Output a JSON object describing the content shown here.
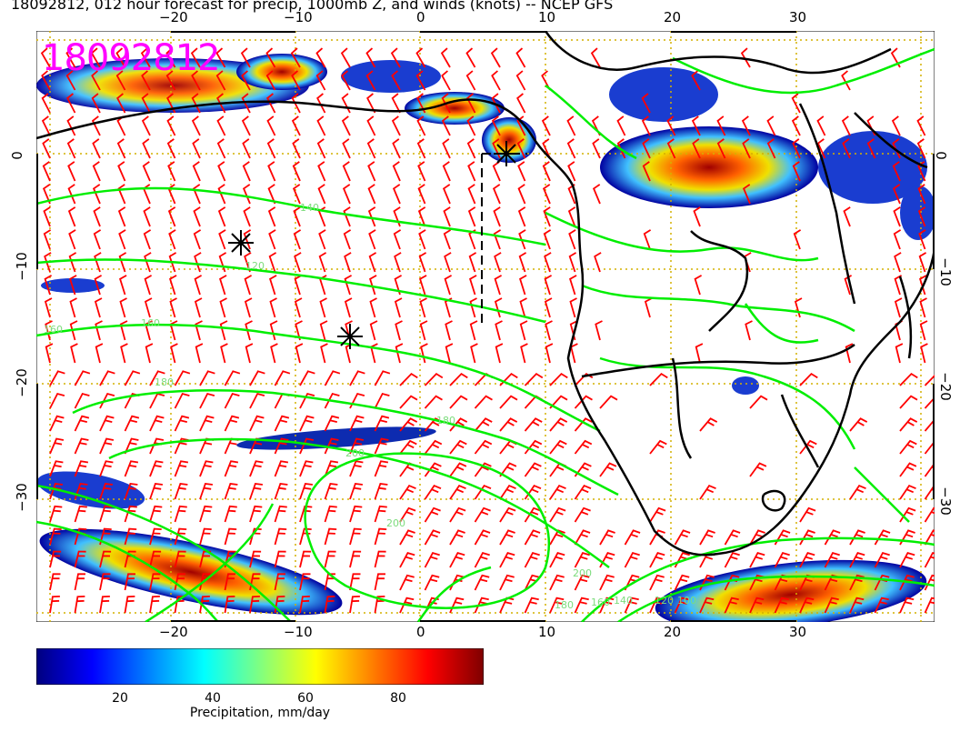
{
  "title": "18092812, 012 hour forecast for precip, 1000mb Z, and winds (knots) -- NCEP GFS",
  "stamp": "18092812",
  "colors": {
    "stamp": "#ff00ff",
    "contours": "#00ee00",
    "barbs": "#ff0000",
    "grid": "#d4b000",
    "coast": "#000000"
  },
  "axes": {
    "x_top": [
      "−20",
      "−10",
      "0",
      "10",
      "20",
      "30"
    ],
    "x_bottom": [
      "−20",
      "−10",
      "0",
      "10",
      "20",
      "30"
    ],
    "y_left": [
      "0",
      "−10",
      "−20",
      "−30"
    ],
    "y_right": [
      "0",
      "−10",
      "−20",
      "−30"
    ]
  },
  "contour_labels": [
    "120",
    "140",
    "160",
    "160",
    "180",
    "180",
    "200",
    "200",
    "200",
    "180",
    "160",
    "140",
    "120",
    "100"
  ],
  "colorbar": {
    "title": "Precipitation, mm/day",
    "ticks": [
      "20",
      "40",
      "60",
      "80"
    ],
    "stops": [
      "#00007f",
      "#0000ff",
      "#0080ff",
      "#00ffff",
      "#80ff80",
      "#ffff00",
      "#ff8000",
      "#ff0000",
      "#7f0000"
    ]
  }
}
